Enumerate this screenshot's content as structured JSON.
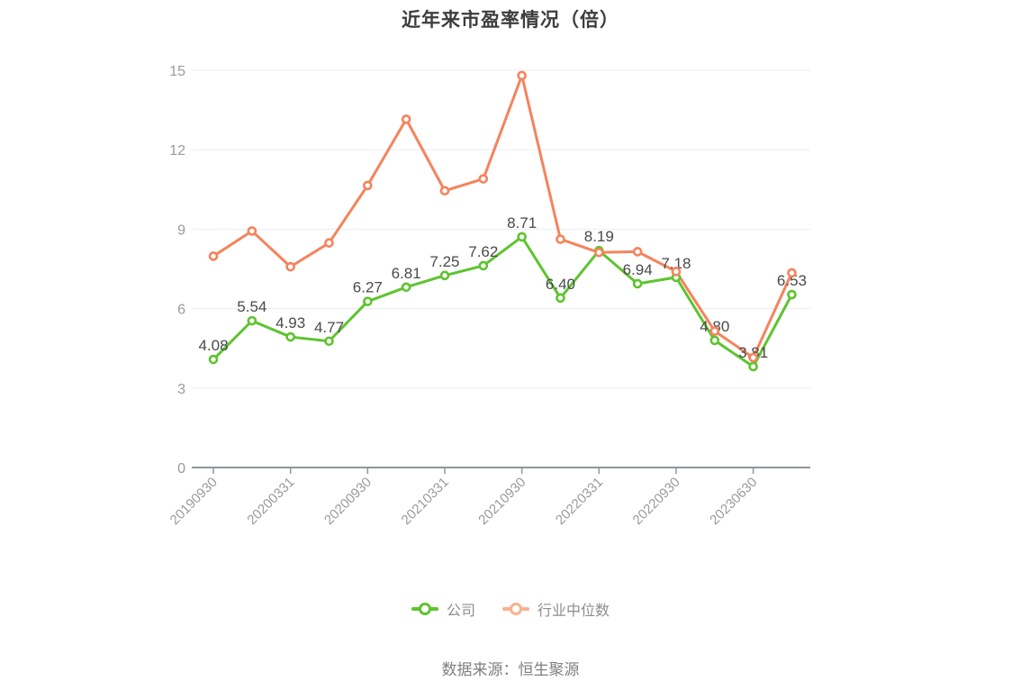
{
  "title": "近年来市盈率情况（倍）",
  "source": "数据来源：恒生聚源",
  "legend": {
    "items": [
      {
        "label": "公司",
        "marker_color": "#5ec42f"
      },
      {
        "label": "行业中位数",
        "marker_color": "#f9b191"
      }
    ]
  },
  "colors": {
    "company_line": "#5ec42f",
    "industry_line": "#f5835c",
    "gridline": "#e9edf6",
    "axis": "#8f959d",
    "tick_label": "#9a9a9a",
    "data_label": "#4a4a4a"
  },
  "chart_data": {
    "type": "line",
    "title": "近年来市盈率情况（倍）",
    "x_tick_labels": [
      "20190930",
      "20200331",
      "20200930",
      "20210331",
      "20210930",
      "20220331",
      "20220930",
      "20230630"
    ],
    "x_tick_every": 2,
    "y_ticks": [
      0,
      3,
      6,
      9,
      12,
      15
    ],
    "ylim": [
      0,
      15
    ],
    "grid": true,
    "legend_position": "bottom",
    "series": [
      {
        "name": "公司",
        "color": "#5ec42f",
        "show_point_labels": true,
        "values": [
          4.08,
          5.54,
          4.93,
          4.77,
          6.27,
          6.81,
          7.25,
          7.62,
          8.71,
          6.4,
          8.19,
          6.94,
          7.18,
          4.8,
          3.81,
          6.53
        ]
      },
      {
        "name": "行业中位数",
        "color": "#f5835c",
        "show_point_labels": false,
        "values": [
          7.98,
          8.93,
          7.58,
          8.48,
          10.65,
          13.15,
          10.45,
          10.9,
          14.8,
          8.62,
          8.12,
          8.15,
          7.4,
          5.15,
          4.15,
          7.35
        ]
      }
    ]
  }
}
